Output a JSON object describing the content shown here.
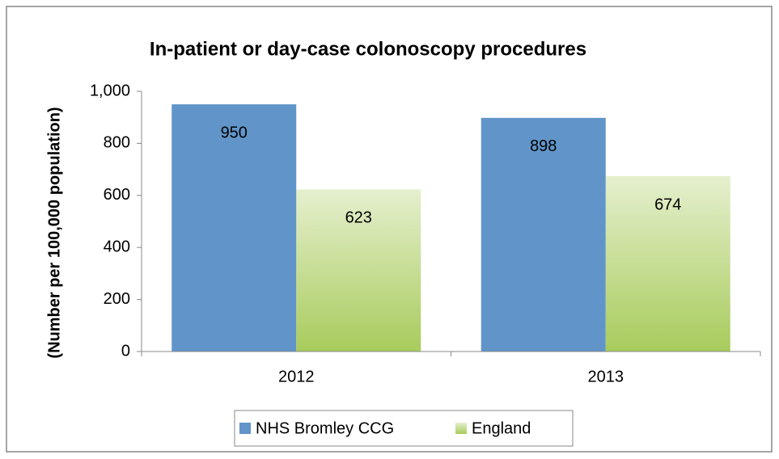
{
  "chart_data": {
    "type": "bar",
    "title": "In-patient or day-case colonoscopy procedures",
    "y_label": "(Number per 100,000 population)",
    "categories": [
      "2012",
      "2013"
    ],
    "series": [
      {
        "name": "NHS Bromley CCG",
        "color": "#6195c9",
        "values": [
          950,
          898
        ]
      },
      {
        "name": "England",
        "color": "#a8cb5c",
        "gradient": true,
        "values": [
          623,
          674
        ]
      }
    ],
    "ylim": [
      0,
      1000
    ],
    "yticks": [
      0,
      200,
      400,
      600,
      800,
      {
        "value": 1000,
        "label": "1,000"
      }
    ],
    "grid": false,
    "legend": "bottom"
  }
}
